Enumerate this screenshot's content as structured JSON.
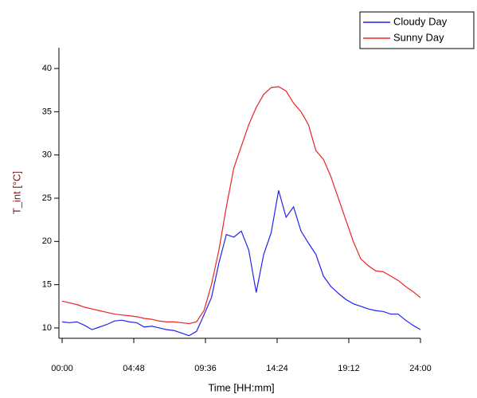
{
  "chart_data": {
    "type": "line",
    "x_label": "Time [HH:mm]",
    "y_label": "T_int [°C]",
    "x": [
      0,
      0.5,
      1,
      1.5,
      2,
      2.5,
      3,
      3.5,
      4,
      4.5,
      5,
      5.5,
      6,
      6.5,
      7,
      7.5,
      8,
      8.5,
      9,
      9.5,
      10,
      10.5,
      11,
      11.5,
      12,
      12.5,
      13,
      13.5,
      14,
      14.5,
      15,
      15.5,
      16,
      16.5,
      17,
      17.5,
      18,
      18.5,
      19,
      19.5,
      20,
      20.5,
      21,
      21.5,
      22,
      22.5,
      23,
      23.5,
      24
    ],
    "series": [
      {
        "name": "Cloudy Day",
        "color": "#2222ee",
        "values": [
          10.7,
          10.6,
          10.7,
          10.3,
          9.8,
          10.1,
          10.4,
          10.8,
          10.9,
          10.7,
          10.6,
          10.1,
          10.2,
          10.0,
          9.8,
          9.7,
          9.4,
          9.1,
          9.6,
          11.5,
          13.5,
          17.5,
          20.8,
          20.5,
          21.2,
          19,
          14.1,
          18.5,
          21,
          25.9,
          22.8,
          24,
          21.2,
          19.8,
          18.5,
          16,
          14.8,
          14,
          13.3,
          12.8,
          12.5,
          12.2,
          12.0,
          11.9,
          11.6,
          11.6,
          10.9,
          10.3,
          9.8
        ]
      },
      {
        "name": "Sunny Day",
        "color": "#ee2222",
        "values": [
          13.1,
          12.9,
          12.7,
          12.4,
          12.2,
          12.0,
          11.8,
          11.6,
          11.5,
          11.4,
          11.3,
          11.1,
          11.0,
          10.8,
          10.7,
          10.7,
          10.6,
          10.5,
          10.7,
          12,
          15,
          19,
          24,
          28.5,
          31,
          33.5,
          35.5,
          37,
          37.8,
          37.9,
          37.4,
          36,
          35,
          33.5,
          30.5,
          29.5,
          27.5,
          25,
          22.5,
          20,
          18,
          17.2,
          16.6,
          16.5,
          16,
          15.5,
          14.8,
          14.2,
          13.5
        ]
      }
    ],
    "xlim": [
      0,
      24
    ],
    "xticks": [
      {
        "value": 0,
        "label": "00:00"
      },
      {
        "value": 4.8,
        "label": "04:48"
      },
      {
        "value": 9.6,
        "label": "09:36"
      },
      {
        "value": 14.4,
        "label": "14:24"
      },
      {
        "value": 19.2,
        "label": "19:12"
      },
      {
        "value": 24,
        "label": "24:00"
      }
    ],
    "ylim": [
      8.8,
      42.4
    ],
    "yticks": [
      10,
      15,
      20,
      25,
      30,
      35,
      40
    ],
    "legend": "top-right"
  }
}
